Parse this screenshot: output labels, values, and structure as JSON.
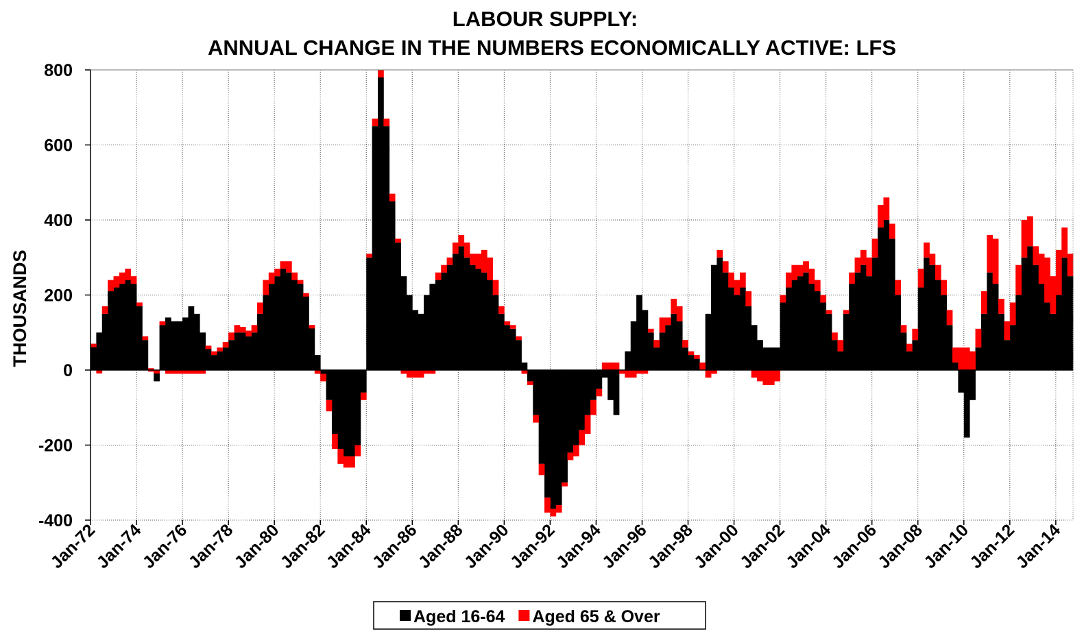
{
  "chart_data": {
    "type": "stacked_bar",
    "title": "LABOUR SUPPLY:",
    "subtitle": "ANNUAL CHANGE IN THE NUMBERS ECONOMICALLY ACTIVE: LFS",
    "y_label": "THOUSANDS",
    "categories": [
      "Jan-72",
      null,
      null,
      null,
      null,
      null,
      null,
      null,
      "Jan-74",
      null,
      null,
      null,
      null,
      null,
      null,
      null,
      "Jan-76",
      null,
      null,
      null,
      null,
      null,
      null,
      null,
      "Jan-78",
      null,
      null,
      null,
      null,
      null,
      null,
      null,
      "Jan-80",
      null,
      null,
      null,
      null,
      null,
      null,
      null,
      "Jan-82",
      null,
      null,
      null,
      null,
      null,
      null,
      null,
      "Jan-84",
      null,
      null,
      null,
      null,
      null,
      null,
      null,
      "Jan-86",
      null,
      null,
      null,
      null,
      null,
      null,
      null,
      "Jan-88",
      null,
      null,
      null,
      null,
      null,
      null,
      null,
      "Jan-90",
      null,
      null,
      null,
      null,
      null,
      null,
      null,
      "Jan-92",
      null,
      null,
      null,
      null,
      null,
      null,
      null,
      "Jan-94",
      null,
      null,
      null,
      null,
      null,
      null,
      null,
      "Jan-96",
      null,
      null,
      null,
      null,
      null,
      null,
      null,
      "Jan-98",
      null,
      null,
      null,
      null,
      null,
      null,
      null,
      "Jan-00",
      null,
      null,
      null,
      null,
      null,
      null,
      null,
      "Jan-02",
      null,
      null,
      null,
      null,
      null,
      null,
      null,
      "Jan-04",
      null,
      null,
      null,
      null,
      null,
      null,
      null,
      "Jan-06",
      null,
      null,
      null,
      null,
      null,
      null,
      null,
      "Jan-08",
      null,
      null,
      null,
      null,
      null,
      null,
      null,
      "Jan-10",
      null,
      null,
      null,
      null,
      null,
      null,
      null,
      "Jan-12",
      null,
      null,
      null,
      null,
      null,
      null,
      null,
      "Jan-14",
      null,
      null
    ],
    "series": [
      {
        "name": "Aged 16-64",
        "color": "#000000",
        "values": [
          70,
          100,
          150,
          210,
          220,
          230,
          240,
          230,
          170,
          80,
          0,
          -30,
          120,
          140,
          130,
          130,
          140,
          170,
          150,
          100,
          60,
          40,
          50,
          60,
          80,
          100,
          100,
          90,
          100,
          150,
          200,
          230,
          250,
          270,
          260,
          240,
          230,
          200,
          120,
          40,
          -10,
          -80,
          -170,
          -210,
          -230,
          -230,
          -200,
          -60,
          300,
          650,
          780,
          650,
          450,
          340,
          250,
          200,
          160,
          150,
          200,
          230,
          240,
          260,
          280,
          310,
          330,
          300,
          280,
          270,
          260,
          240,
          200,
          150,
          120,
          110,
          80,
          20,
          -30,
          -120,
          -250,
          -340,
          -370,
          -360,
          -300,
          -220,
          -200,
          -160,
          -120,
          -80,
          -50,
          -20,
          -80,
          -120,
          0,
          50,
          130,
          200,
          160,
          100,
          60,
          100,
          120,
          150,
          130,
          60,
          40,
          30,
          0,
          150,
          280,
          300,
          260,
          220,
          200,
          220,
          170,
          120,
          80,
          60,
          60,
          60,
          180,
          220,
          240,
          250,
          260,
          230,
          210,
          180,
          150,
          80,
          50,
          150,
          230,
          260,
          280,
          250,
          300,
          380,
          400,
          350,
          200,
          100,
          50,
          80,
          220,
          300,
          280,
          240,
          200,
          120,
          20,
          -60,
          -180,
          -80,
          60,
          150,
          260,
          230,
          150,
          80,
          120,
          200,
          300,
          330,
          280,
          230,
          180,
          150,
          200,
          300,
          250
        ]
      },
      {
        "name": "Aged 65 & Over",
        "color": "#ff0000",
        "values": [
          0,
          -5,
          20,
          30,
          30,
          30,
          30,
          20,
          10,
          10,
          5,
          0,
          10,
          -10,
          -10,
          -10,
          -10,
          -10,
          -10,
          -10,
          5,
          10,
          10,
          15,
          20,
          20,
          15,
          15,
          20,
          30,
          40,
          30,
          20,
          20,
          30,
          20,
          10,
          5,
          0,
          -10,
          -20,
          -30,
          -40,
          -40,
          -30,
          -30,
          -30,
          -20,
          10,
          20,
          20,
          20,
          20,
          10,
          -10,
          -20,
          -20,
          -20,
          -10,
          -10,
          20,
          20,
          20,
          30,
          30,
          40,
          30,
          40,
          60,
          60,
          40,
          20,
          10,
          10,
          10,
          -10,
          -10,
          -20,
          -30,
          -40,
          -20,
          -20,
          -10,
          -20,
          -30,
          -40,
          -50,
          -40,
          -20,
          20,
          20,
          20,
          -10,
          -20,
          -20,
          -10,
          -10,
          10,
          20,
          40,
          20,
          40,
          40,
          20,
          10,
          10,
          20,
          -20,
          -10,
          20,
          30,
          40,
          40,
          40,
          40,
          -20,
          -30,
          -40,
          -40,
          -30,
          20,
          40,
          40,
          30,
          30,
          40,
          30,
          20,
          10,
          20,
          30,
          10,
          30,
          40,
          40,
          50,
          50,
          60,
          60,
          40,
          40,
          20,
          20,
          30,
          50,
          40,
          30,
          40,
          40,
          40,
          40,
          60,
          60,
          50,
          50,
          60,
          100,
          120,
          40,
          50,
          60,
          80,
          100,
          80,
          50,
          80,
          120,
          100,
          120,
          80,
          60
        ]
      }
    ],
    "ylim": [
      -400,
      800
    ],
    "yticks": [
      -400,
      -200,
      0,
      200,
      400,
      600,
      800
    ],
    "grid": true,
    "legend": "bottom"
  }
}
